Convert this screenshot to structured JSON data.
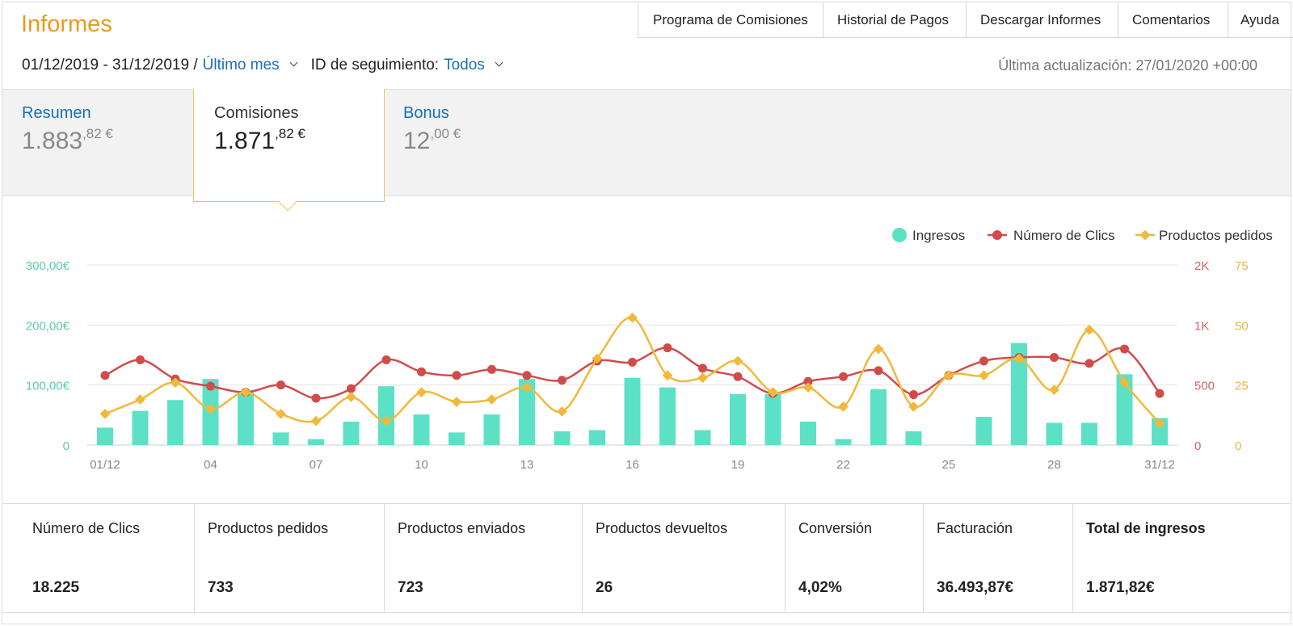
{
  "header": {
    "title": "Informes",
    "nav": [
      "Programa de Comisiones",
      "Historial de Pagos",
      "Descargar Informes",
      "Comentarios",
      "Ayuda"
    ],
    "date_range": "01/12/2019 - 31/12/2019 /",
    "period": "Último mes",
    "tracking_label": "ID de seguimiento:",
    "tracking_value": "Todos",
    "last_update": "Última actualización: 27/01/2020 +00:00"
  },
  "tabs": {
    "resumen": {
      "label": "Resumen",
      "integer": "1.883",
      "decimal": ",82 €"
    },
    "comisiones": {
      "label": "Comisiones",
      "integer": "1.871",
      "decimal": ",82 €"
    },
    "bonus": {
      "label": "Bonus",
      "integer": "12",
      "decimal": ",00 €"
    }
  },
  "chart_data": {
    "type": "bar+line",
    "categories": [
      "01/12",
      "02",
      "03",
      "04",
      "05",
      "06",
      "07",
      "08",
      "09",
      "10",
      "11",
      "12",
      "13",
      "14",
      "15",
      "16",
      "17",
      "18",
      "19",
      "20",
      "21",
      "22",
      "23",
      "24",
      "25",
      "26",
      "27",
      "28",
      "29",
      "30",
      "31/12"
    ],
    "x_tick_labels": [
      "01/12",
      "04",
      "07",
      "10",
      "13",
      "16",
      "19",
      "22",
      "25",
      "28",
      "31/12"
    ],
    "legend": [
      "Ingresos",
      "Número de Clics",
      "Productos pedidos"
    ],
    "legend_position": "top-right",
    "colors": {
      "ingresos": "#5ce1c6",
      "clics": "#d24b4b",
      "pedidos": "#f0b93b"
    },
    "y_left": {
      "ticks": [
        "0",
        "100,00€",
        "200,00€",
        "300,00€"
      ],
      "range": [
        0,
        300
      ]
    },
    "y_right_clics": {
      "ticks": [
        "0",
        "500",
        "1K",
        "2K"
      ],
      "range": [
        0,
        1500
      ]
    },
    "y_right_pedidos": {
      "ticks": [
        "0",
        "25",
        "50",
        "75"
      ],
      "range": [
        0,
        75
      ]
    },
    "series": [
      {
        "name": "Ingresos",
        "type": "bar",
        "values": [
          29,
          57,
          75,
          110,
          90,
          21,
          10,
          39,
          98,
          51,
          21,
          51,
          110,
          23,
          25,
          112,
          96,
          25,
          85,
          85,
          39,
          10,
          93,
          23,
          0,
          47,
          170,
          37,
          37,
          118,
          45
        ]
      },
      {
        "name": "Número de Clics",
        "type": "line",
        "values": [
          580,
          710,
          550,
          490,
          440,
          500,
          390,
          470,
          710,
          610,
          580,
          630,
          580,
          540,
          700,
          690,
          810,
          640,
          570,
          430,
          530,
          570,
          620,
          420,
          580,
          700,
          730,
          730,
          680,
          800,
          430
        ]
      },
      {
        "name": "Productos pedidos",
        "type": "line",
        "values": [
          13,
          19,
          26,
          15,
          22,
          13,
          10,
          20,
          10,
          22,
          18,
          19,
          24,
          14,
          36,
          53,
          29,
          28,
          35,
          22,
          24,
          16,
          40,
          16,
          29,
          29,
          36,
          23,
          48,
          26,
          9
        ]
      }
    ]
  },
  "stats": [
    {
      "label": "Número de Clics",
      "value": "18.225"
    },
    {
      "label": "Productos pedidos",
      "value": "733"
    },
    {
      "label": "Productos enviados",
      "value": "723"
    },
    {
      "label": "Productos devueltos",
      "value": "26"
    },
    {
      "label": "Conversión",
      "value": "4,02%"
    },
    {
      "label": "Facturación",
      "value": "36.493,87€"
    },
    {
      "label": "Total de ingresos",
      "value": "1.871,82€"
    }
  ]
}
